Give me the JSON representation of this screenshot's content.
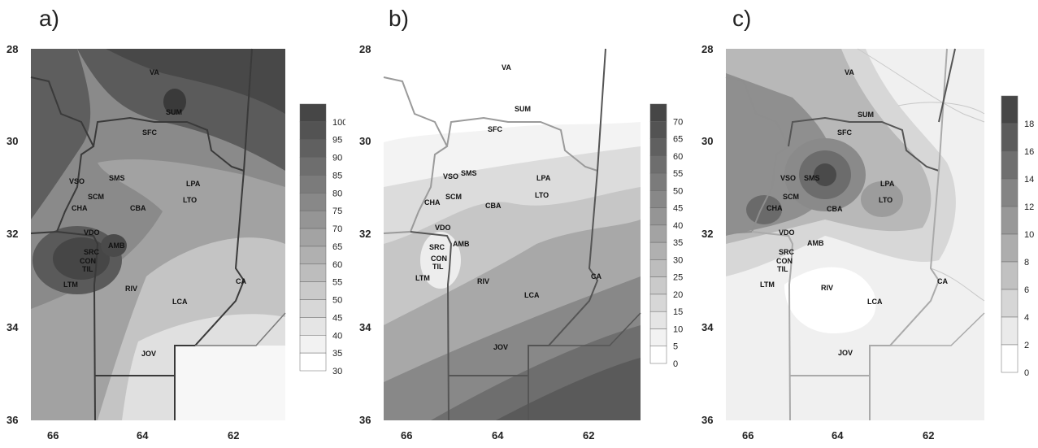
{
  "panels": [
    {
      "id": "a",
      "label": "a)",
      "y_ticks": [
        "28",
        "30",
        "32",
        "34",
        "36"
      ],
      "x_ticks": [
        "66",
        "64",
        "62"
      ],
      "legend_ticks": [
        "100",
        "95",
        "90",
        "85",
        "80",
        "75",
        "70",
        "65",
        "60",
        "55",
        "50",
        "45",
        "40",
        "35",
        "30"
      ],
      "stations": [
        "VA",
        "SUM",
        "SFC",
        "VSO",
        "SMS",
        "LPA",
        "LTO",
        "SCM",
        "CHA",
        "CBA",
        "VDO",
        "SRC",
        "AMB",
        "CON",
        "TIL",
        "LTM",
        "RIV",
        "CA",
        "LCA",
        "JOV"
      ]
    },
    {
      "id": "b",
      "label": "b)",
      "y_ticks": [
        "28",
        "30",
        "32",
        "34",
        "36"
      ],
      "x_ticks": [
        "66",
        "64",
        "62"
      ],
      "legend_ticks": [
        "70",
        "65",
        "60",
        "55",
        "50",
        "45",
        "40",
        "35",
        "30",
        "25",
        "20",
        "15",
        "10",
        "5",
        "0"
      ],
      "stations": [
        "VA",
        "SUM",
        "SFC",
        "VSO",
        "SMS",
        "LPA",
        "LTO",
        "SCM",
        "CHA",
        "CBA",
        "VDO",
        "SRC",
        "AMB",
        "CON",
        "TIL",
        "LTM",
        "RIV",
        "CA",
        "LCA",
        "JOV"
      ]
    },
    {
      "id": "c",
      "label": "c)",
      "y_ticks": [
        "28",
        "30",
        "32",
        "34",
        "36"
      ],
      "x_ticks": [
        "66",
        "64",
        "62"
      ],
      "legend_ticks": [
        "18",
        "16",
        "14",
        "12",
        "10",
        "8",
        "6",
        "4",
        "2",
        "0"
      ],
      "stations": [
        "VA",
        "SUM",
        "SFC",
        "VSO",
        "SMS",
        "LPA",
        "LTO",
        "SCM",
        "CHA",
        "CBA",
        "VDO",
        "SRC",
        "AMB",
        "CON",
        "TIL",
        "LTM",
        "RIV",
        "CA",
        "LCA",
        "JOV"
      ]
    }
  ],
  "colors": {
    "darkest": "#3f3f3f",
    "dark": "#6e6e6e",
    "mid": "#9a9a9a",
    "light": "#cfcfcf",
    "lightest": "#f2f2f2",
    "border_line": "#5a5a5a",
    "highlight_border": "#a9a9a9"
  }
}
